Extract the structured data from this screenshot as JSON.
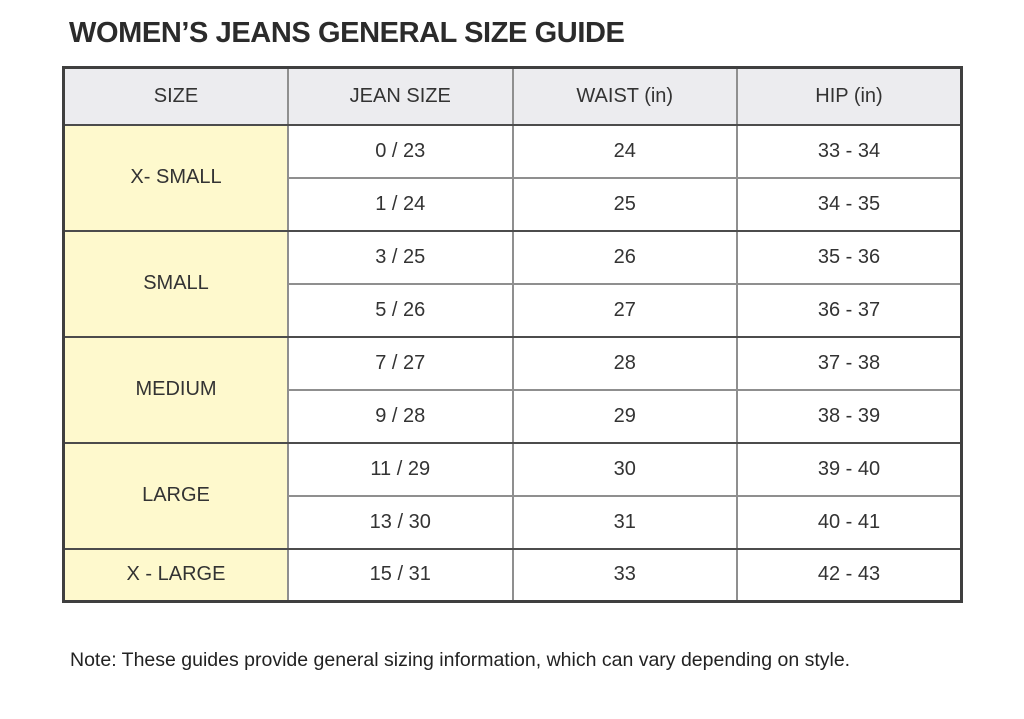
{
  "title": "WOMEN’S JEANS GENERAL SIZE GUIDE",
  "note": "Note: These guides provide general sizing information, which can vary depending on style.",
  "colors": {
    "header_bg": "#ECECEF",
    "size_col_bg": "#FEF9CD",
    "border_dark": "#4C4C4C",
    "border_mid": "#8F8F8F",
    "text_color": "#333333",
    "title_color": "#2B2B2B"
  },
  "table": {
    "headers": [
      "SIZE",
      "JEAN SIZE",
      "WAIST (in)",
      "HIP (in)"
    ],
    "groups": [
      {
        "size": "X- SMALL",
        "rows": [
          [
            "0 / 23",
            "24",
            "33 - 34"
          ],
          [
            "1 / 24",
            "25",
            "34 - 35"
          ]
        ]
      },
      {
        "size": "SMALL",
        "rows": [
          [
            "3 / 25",
            "26",
            "35 - 36"
          ],
          [
            "5 / 26",
            "27",
            "36 - 37"
          ]
        ]
      },
      {
        "size": "MEDIUM",
        "rows": [
          [
            "7 / 27",
            "28",
            "37 - 38"
          ],
          [
            "9 / 28",
            "29",
            "38 - 39"
          ]
        ]
      },
      {
        "size": "LARGE",
        "rows": [
          [
            "11 / 29",
            "30",
            "39 - 40"
          ],
          [
            "13 / 30",
            "31",
            "40 - 41"
          ]
        ]
      },
      {
        "size": "X - LARGE",
        "rows": [
          [
            "15 / 31",
            "33",
            "42 - 43"
          ]
        ]
      }
    ]
  }
}
